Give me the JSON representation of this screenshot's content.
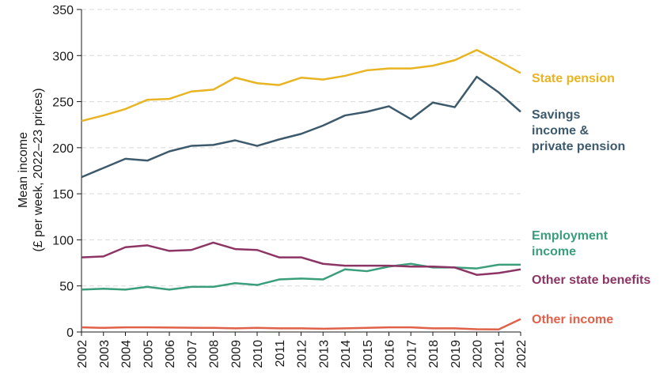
{
  "chart_data": {
    "type": "line",
    "title": "",
    "xlabel": "",
    "ylabel_lines": [
      "Mean income",
      "(£ per week, 2022–23 prices)"
    ],
    "ylim": [
      0,
      350
    ],
    "yticks": [
      0,
      50,
      100,
      150,
      200,
      250,
      300,
      350
    ],
    "grid": true,
    "categories": [
      "2002",
      "2003",
      "2004",
      "2005",
      "2006",
      "2007",
      "2008",
      "2009",
      "2010",
      "2011",
      "2012",
      "2013",
      "2014",
      "2015",
      "2016",
      "2017",
      "2018",
      "2019",
      "2020",
      "2021",
      "2022"
    ],
    "series": [
      {
        "name": "State pension",
        "label_lines": [
          "State pension"
        ],
        "color": "#e8b422",
        "values": [
          229,
          235,
          242,
          252,
          253,
          261,
          263,
          276,
          270,
          268,
          276,
          274,
          278,
          284,
          286,
          286,
          289,
          295,
          306,
          294,
          281
        ]
      },
      {
        "name": "Savings income & private pension",
        "label_lines": [
          "Savings",
          "income &",
          "private pension"
        ],
        "color": "#3d5a6c",
        "values": [
          168,
          178,
          188,
          186,
          196,
          202,
          203,
          208,
          202,
          209,
          215,
          224,
          235,
          239,
          245,
          231,
          249,
          244,
          277,
          260,
          239
        ]
      },
      {
        "name": "Employment income",
        "label_lines": [
          "Employment",
          "income"
        ],
        "color": "#3a9e7a",
        "values": [
          46,
          47,
          46,
          49,
          46,
          49,
          49,
          53,
          51,
          57,
          58,
          57,
          68,
          66,
          71,
          74,
          70,
          70,
          69,
          73,
          73
        ]
      },
      {
        "name": "Other state benefits",
        "label_lines": [
          "Other state benefits"
        ],
        "color": "#8c3565",
        "values": [
          81,
          82,
          92,
          94,
          88,
          89,
          97,
          90,
          89,
          81,
          81,
          74,
          72,
          72,
          72,
          71,
          71,
          70,
          62,
          64,
          68
        ]
      },
      {
        "name": "Other income",
        "label_lines": [
          "Other income"
        ],
        "color": "#e0614a",
        "values": [
          5,
          4.5,
          5,
          5,
          4.8,
          4.6,
          4.5,
          4,
          4.5,
          4,
          4,
          3.5,
          4,
          4.5,
          5,
          5,
          4,
          4,
          3,
          2.8,
          14
        ]
      }
    ]
  }
}
